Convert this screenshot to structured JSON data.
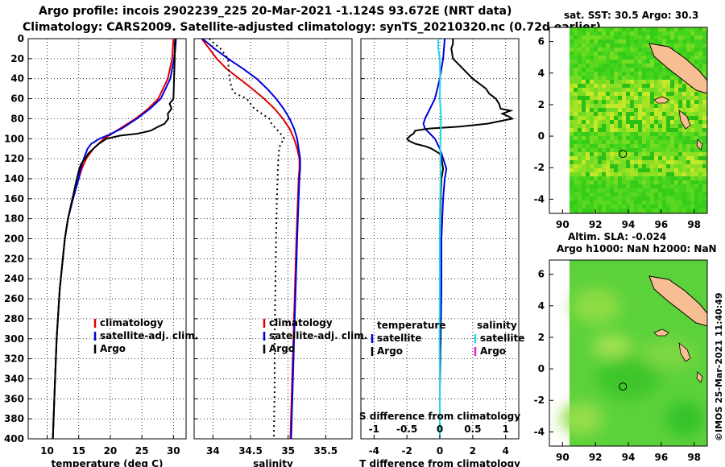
{
  "header": {
    "title_line1": "Argo profile: incois 2902239_225 20-Mar-2021 -1.124S 93.672E (NRT data)",
    "title_line2": "Climatology: CARS2009. Satellite-adjusted climatology: synTS_20210320.nc (0.72d earlier)"
  },
  "colors": {
    "climatology": "#e00000",
    "satellite": "#0000dd",
    "argo": "#000000",
    "salinity_sat": "#22d8e6",
    "salinity_argo": "#e020c0",
    "land": "#f6be92"
  },
  "chart_data": [
    {
      "type": "line",
      "id": "temperature",
      "xlabel": "temperature (deg C)",
      "ylabel": "",
      "xlim": [
        7,
        32
      ],
      "ylim": [
        400,
        0
      ],
      "xticks": [
        "10",
        "15",
        "20",
        "25",
        "30"
      ],
      "yticks": [
        "0",
        "20",
        "40",
        "60",
        "80",
        "100",
        "120",
        "140",
        "160",
        "180",
        "200",
        "220",
        "240",
        "260",
        "280",
        "300",
        "320",
        "340",
        "360",
        "380",
        "400"
      ],
      "legend": [
        "climatology",
        "satellite-adj. clim.",
        "Argo"
      ],
      "series": [
        {
          "name": "climatology",
          "color": "#e00000",
          "style": "solid",
          "depth": [
            0,
            10,
            20,
            40,
            60,
            70,
            80,
            90,
            100,
            110,
            120,
            130,
            140,
            160,
            180,
            200,
            250,
            300,
            350,
            400
          ],
          "values": [
            30.0,
            29.9,
            29.8,
            29.1,
            27.6,
            26.0,
            24.0,
            21.5,
            19.0,
            17.3,
            16.2,
            15.5,
            15.0,
            14.0,
            13.3,
            12.8,
            12.0,
            11.5,
            11.2,
            10.9
          ]
        },
        {
          "name": "satellite-adj. clim.",
          "color": "#0000dd",
          "style": "solid",
          "depth": [
            0,
            10,
            20,
            40,
            60,
            70,
            80,
            90,
            96,
            100,
            105,
            110,
            120,
            130,
            140,
            160,
            180,
            200,
            250,
            300,
            350,
            400
          ],
          "values": [
            30.4,
            30.3,
            30.1,
            29.5,
            28.0,
            26.3,
            24.2,
            21.8,
            19.8,
            18.3,
            17.0,
            16.4,
            15.8,
            15.3,
            15.0,
            14.1,
            13.3,
            12.8,
            12.0,
            11.5,
            11.2,
            10.9
          ]
        },
        {
          "name": "Argo",
          "color": "#000000",
          "style": "solid",
          "depth": [
            0,
            5,
            20,
            40,
            60,
            65,
            70,
            75,
            80,
            85,
            88,
            92,
            95,
            97,
            100,
            105,
            110,
            115,
            120,
            125,
            130,
            140,
            160,
            180,
            200,
            250,
            300,
            350,
            400
          ],
          "values": [
            30.3,
            30.2,
            30.2,
            30.1,
            30.0,
            29.4,
            29.7,
            29.1,
            29.2,
            28.6,
            27.6,
            26.4,
            24.3,
            21.5,
            19.4,
            18.2,
            17.3,
            16.5,
            16.0,
            15.4,
            15.1,
            14.7,
            14.0,
            13.3,
            12.8,
            12.0,
            11.5,
            11.2,
            10.9
          ]
        }
      ]
    },
    {
      "type": "line",
      "id": "salinity",
      "xlabel": "salinity",
      "ylabel": "",
      "xlim": [
        33.75,
        35.85
      ],
      "ylim": [
        400,
        0
      ],
      "xticks": [
        "34",
        "34.5",
        "35",
        "35.5"
      ],
      "legend": [
        "climatology",
        "satellite-adj. clim.",
        "Argo"
      ],
      "series": [
        {
          "name": "climatology",
          "color": "#e00000",
          "style": "solid",
          "depth": [
            0,
            10,
            20,
            30,
            40,
            50,
            60,
            70,
            80,
            90,
            100,
            110,
            120,
            130,
            140,
            160,
            200,
            250,
            300,
            350,
            400
          ],
          "values": [
            33.85,
            33.95,
            34.05,
            34.18,
            34.35,
            34.52,
            34.68,
            34.82,
            34.93,
            35.02,
            35.08,
            35.12,
            35.15,
            35.15,
            35.14,
            35.13,
            35.11,
            35.09,
            35.07,
            35.05,
            35.03
          ]
        },
        {
          "name": "satellite-adj. clim.",
          "color": "#0000dd",
          "style": "solid",
          "depth": [
            0,
            10,
            20,
            30,
            40,
            50,
            60,
            70,
            80,
            90,
            100,
            110,
            120,
            130,
            140,
            160,
            200,
            250,
            300,
            350,
            400
          ],
          "values": [
            33.86,
            34.02,
            34.2,
            34.4,
            34.58,
            34.72,
            34.84,
            34.94,
            35.02,
            35.08,
            35.12,
            35.14,
            35.16,
            35.16,
            35.15,
            35.14,
            35.12,
            35.1,
            35.08,
            35.06,
            35.04
          ]
        },
        {
          "name": "Argo",
          "color": "#000000",
          "style": "dotted",
          "depth": [
            0,
            5,
            10,
            20,
            30,
            40,
            50,
            55,
            60,
            70,
            80,
            85,
            90,
            95,
            100,
            105,
            110,
            120,
            140,
            160,
            200,
            250,
            300,
            350,
            400
          ],
          "values": [
            33.95,
            34.02,
            34.1,
            34.2,
            34.21,
            34.22,
            34.25,
            34.3,
            34.45,
            34.55,
            34.75,
            34.78,
            34.84,
            34.9,
            34.95,
            34.9,
            34.88,
            34.87,
            34.86,
            34.85,
            34.84,
            34.83,
            34.82,
            34.82,
            34.81
          ]
        }
      ]
    },
    {
      "type": "line",
      "id": "difference",
      "xlabel": "T difference from climatology",
      "xlabel_top": "S difference from climatology",
      "ylabel": "",
      "xlim": [
        -4.8,
        4.8
      ],
      "ylim": [
        400,
        0
      ],
      "xticks": [
        "-4",
        "-2",
        "0",
        "2",
        "4"
      ],
      "xticks_top": [
        "-1",
        "-0.5",
        "0",
        "0.5",
        "1"
      ],
      "legend_titles": [
        "temperature",
        "salinity"
      ],
      "legend_left": [
        "satellite",
        "Argo"
      ],
      "legend_right": [
        "satellite",
        "Argo"
      ],
      "series": [
        {
          "name": "T satellite",
          "color": "#0000dd",
          "style": "solid",
          "depth": [
            0,
            20,
            40,
            60,
            70,
            80,
            85,
            90,
            95,
            100,
            110,
            120,
            130,
            140,
            160,
            200,
            250,
            300,
            350,
            400
          ],
          "values": [
            0.3,
            0.2,
            0.0,
            -0.3,
            -0.6,
            -0.9,
            -1.0,
            -0.9,
            -0.6,
            -0.3,
            0.0,
            0.2,
            0.4,
            0.3,
            0.2,
            0.1,
            0.1,
            0.05,
            0.0,
            0.0
          ]
        },
        {
          "name": "T Argo",
          "color": "#000000",
          "style": "solid",
          "depth": [
            0,
            5,
            10,
            20,
            30,
            40,
            50,
            55,
            60,
            65,
            70,
            72,
            75,
            78,
            80,
            82,
            85,
            88,
            90,
            92,
            95,
            97,
            100,
            102,
            105,
            108,
            110,
            115,
            120,
            130,
            140,
            160,
            200,
            250,
            300,
            350,
            400
          ],
          "values": [
            0.8,
            0.8,
            0.7,
            0.8,
            1.4,
            2.0,
            2.8,
            3.0,
            3.4,
            3.6,
            3.7,
            4.3,
            3.8,
            4.2,
            4.4,
            3.8,
            2.9,
            1.2,
            -0.7,
            -1.5,
            -1.6,
            -1.8,
            -2.0,
            -1.9,
            -1.5,
            -0.8,
            -0.5,
            0.0,
            0.1,
            0.2,
            0.1,
            0.05,
            0.0,
            0.0,
            0.0,
            0.0,
            0.0
          ]
        },
        {
          "name": "S satellite",
          "color": "#22d8e6",
          "style": "solid",
          "depth": [
            0,
            10,
            20,
            40,
            60,
            70,
            80,
            90,
            100,
            110,
            120,
            140,
            160,
            180,
            200,
            250,
            300,
            350,
            400
          ],
          "values": [
            -0.1,
            -0.1,
            0.0,
            0.02,
            0.0,
            0.05,
            0.08,
            0.06,
            0.04,
            0.03,
            0.04,
            0.05,
            0.02,
            0.0,
            0.0,
            0.0,
            -0.02,
            0.0,
            0.0
          ]
        }
      ]
    },
    {
      "type": "heatmap",
      "id": "sst-map",
      "title": "sat. SST: 30.5 Argo: 30.3",
      "xlim": [
        89.2,
        98.8
      ],
      "ylim": [
        -4.9,
        6.9
      ],
      "xticks": [
        "90",
        "92",
        "94",
        "96",
        "98"
      ],
      "yticks": [
        "6",
        "4",
        "2",
        "0",
        "-2",
        "-4"
      ],
      "marker": {
        "lon": 93.672,
        "lat": -1.124
      }
    },
    {
      "type": "heatmap",
      "id": "sla-map",
      "title": "Altim. SLA: -0.024",
      "subtitle": "Argo h1000: NaN h2000: NaN",
      "xlim": [
        89.2,
        98.8
      ],
      "ylim": [
        -4.9,
        6.9
      ],
      "xticks": [
        "90",
        "92",
        "94",
        "96",
        "98"
      ],
      "yticks": [
        "6",
        "4",
        "2",
        "0",
        "-2",
        "-4"
      ],
      "marker": {
        "lon": 93.672,
        "lat": -1.124
      }
    }
  ],
  "footer": {
    "watermark": "©IMOS 25-Mar-2021 11:40:49"
  }
}
